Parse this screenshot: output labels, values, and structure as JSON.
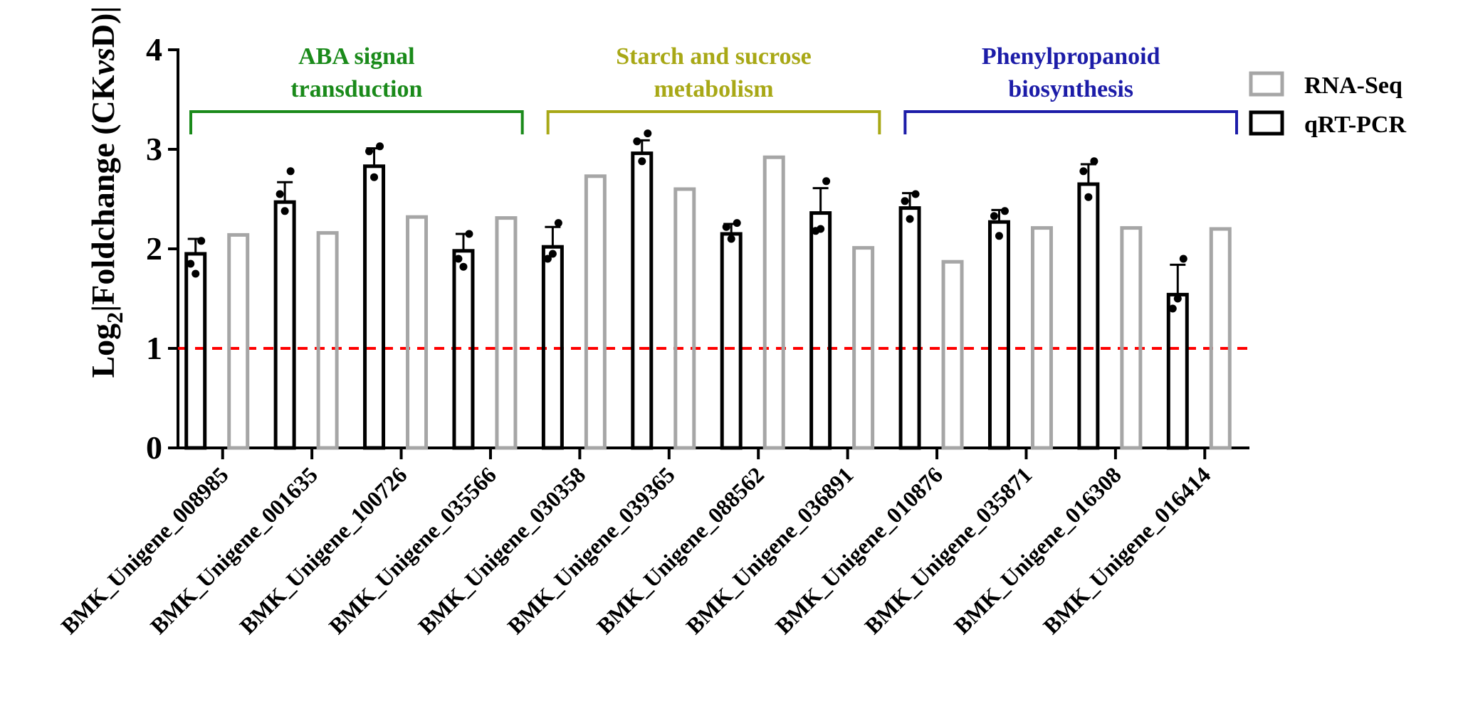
{
  "chart_data": {
    "type": "bar",
    "ylabel_prefix": "Log",
    "ylabel_sub": "2",
    "ylabel_main": "|Foldchange (CK",
    "ylabel_vs": "vs",
    "ylabel_end": "D)|",
    "ylim": [
      0,
      4
    ],
    "yticks": [
      "0",
      "1",
      "2",
      "3",
      "4"
    ],
    "threshold": 1,
    "categories": [
      "BMK_Unigene_008985",
      "BMK_Unigene_001635",
      "BMK_Unigene_100726",
      "BMK_Unigene_035566",
      "BMK_Unigene_030358",
      "BMK_Unigene_039365",
      "BMK_Unigene_088562",
      "BMK_Unigene_036891",
      "BMK_Unigene_010876",
      "BMK_Unigene_035871",
      "BMK_Unigene_016308",
      "BMK_Unigene_016414"
    ],
    "series": [
      {
        "name": "qRT-PCR",
        "color": "#000000",
        "values": [
          1.95,
          2.47,
          2.83,
          1.98,
          2.02,
          2.96,
          2.15,
          2.36,
          2.41,
          2.27,
          2.65,
          1.54
        ],
        "errors": [
          0.15,
          0.2,
          0.18,
          0.17,
          0.2,
          0.13,
          0.1,
          0.25,
          0.15,
          0.12,
          0.2,
          0.3
        ],
        "replicates": [
          [
            1.85,
            2.08,
            1.75
          ],
          [
            2.55,
            2.78,
            2.38
          ],
          [
            2.98,
            3.03,
            2.72
          ],
          [
            1.9,
            2.15,
            1.82
          ],
          [
            1.9,
            2.26,
            1.95
          ],
          [
            3.08,
            3.16,
            2.88
          ],
          [
            2.22,
            2.26,
            2.1
          ],
          [
            2.18,
            2.68,
            2.2
          ],
          [
            2.48,
            2.55,
            2.3
          ],
          [
            2.33,
            2.38,
            2.13
          ],
          [
            2.78,
            2.88,
            2.52
          ],
          [
            1.4,
            1.9,
            1.5
          ]
        ]
      },
      {
        "name": "RNA-Seq",
        "color": "#a6a6a6",
        "values": [
          2.14,
          2.16,
          2.32,
          2.31,
          2.73,
          2.6,
          2.92,
          2.01,
          1.87,
          2.21,
          2.21,
          2.2
        ]
      }
    ],
    "groups": [
      {
        "title_lines": [
          "ABA signal",
          "transduction"
        ],
        "color": "#1a8a1a",
        "from": 0,
        "to": 3
      },
      {
        "title_lines": [
          "Starch and sucrose",
          "metabolism"
        ],
        "color": "#a8a816",
        "from": 4,
        "to": 7
      },
      {
        "title_lines": [
          "Phenylpropanoid",
          "biosynthesis"
        ],
        "color": "#1c1ca8",
        "from": 8,
        "to": 11
      }
    ],
    "threshold_color": "#ff0000",
    "legend": [
      {
        "label": "RNA-Seq",
        "color": "#a6a6a6"
      },
      {
        "label": "qRT-PCR",
        "color": "#000000"
      }
    ],
    "legend_position": "top-right",
    "grid": false
  }
}
